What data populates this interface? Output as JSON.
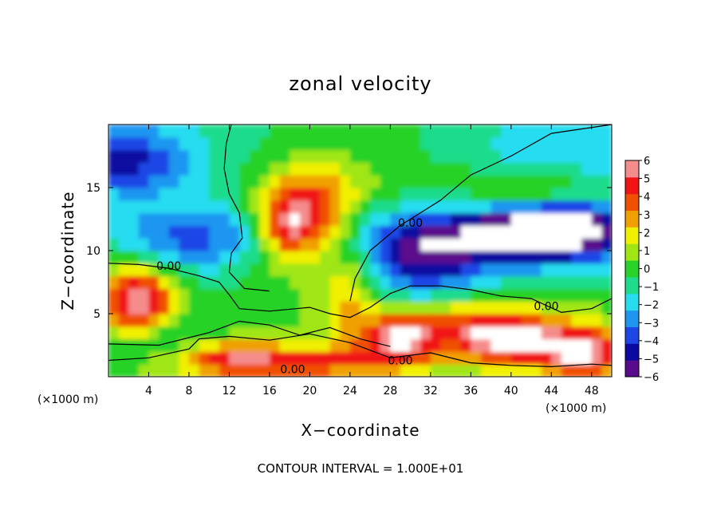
{
  "chart_data": {
    "type": "heatmap",
    "title": "zonal velocity",
    "xlabel": "X−coordinate",
    "ylabel": "Z−coordinate",
    "x_unit": "(×1000 m)",
    "z_unit": "(×1000 m)",
    "xlim": [
      0,
      50
    ],
    "ylim": [
      0,
      20
    ],
    "x_ticks": [
      4,
      8,
      12,
      16,
      20,
      24,
      28,
      32,
      36,
      40,
      44,
      48
    ],
    "y_ticks": [
      5,
      10,
      15
    ],
    "colorbar": {
      "ticks": [
        6,
        5,
        4,
        3,
        2,
        1,
        0,
        -1,
        -2,
        -3,
        -4,
        -5,
        -6
      ],
      "tick_labels": [
        "6",
        "5",
        "4",
        "3",
        "2",
        "1",
        "0",
        "−1",
        "−2",
        "−3",
        "−4",
        "−5",
        "−6"
      ],
      "range": [
        -6,
        6
      ],
      "colors": [
        "#5a0a8c",
        "#0a0aa0",
        "#1e46e6",
        "#1e96f0",
        "#28dcf0",
        "#1edc8c",
        "#28d228",
        "#a0e614",
        "#f0f000",
        "#f0a000",
        "#f05000",
        "#f01414",
        "#f58c8c"
      ]
    },
    "contour_interval_text": "CONTOUR INTERVAL = 1.000E+01",
    "contour_labels": [
      {
        "text": "0.00",
        "x": 6.0,
        "z": 8.8
      },
      {
        "text": "0.00",
        "x": 30.0,
        "z": 12.2
      },
      {
        "text": "0.00",
        "x": 43.5,
        "z": 5.6
      },
      {
        "text": "0.00",
        "x": 29.0,
        "z": 1.3
      },
      {
        "text": "0.00",
        "x": 18.3,
        "z": 0.6
      }
    ],
    "field_blobs": [
      {
        "x": 0,
        "z": 20,
        "rx": 50,
        "rz": 7,
        "v": -2.0
      },
      {
        "x": 27,
        "z": 18,
        "rx": 22,
        "rz": 5,
        "v": 1.5
      },
      {
        "x": 40,
        "z": 16,
        "rx": 12,
        "rz": 5,
        "v": 0.8
      },
      {
        "x": 2,
        "z": 17,
        "rx": 7,
        "rz": 2.5,
        "v": -3.5
      },
      {
        "x": 44,
        "z": 18,
        "rx": 14,
        "rz": 3,
        "v": -3.0
      },
      {
        "x": 8,
        "z": 11,
        "rx": 9,
        "rz": 3,
        "v": -3.5
      },
      {
        "x": 40,
        "z": 11,
        "rx": 16,
        "rz": 3,
        "v": -4.8
      },
      {
        "x": 31,
        "z": 9,
        "rx": 6,
        "rz": 3.5,
        "v": -3.5
      },
      {
        "x": 18,
        "z": 12,
        "rx": 3.5,
        "rz": 3,
        "v": 6.0
      },
      {
        "x": 21,
        "z": 14,
        "rx": 4,
        "rz": 3,
        "v": 2.8
      },
      {
        "x": 24,
        "z": 7,
        "rx": 3,
        "rz": 5,
        "v": 2.5
      },
      {
        "x": 3,
        "z": 6,
        "rx": 3.5,
        "rz": 3,
        "v": 6.0
      },
      {
        "x": 29,
        "z": 3,
        "rx": 3.5,
        "rz": 2,
        "v": 5.0
      },
      {
        "x": 40,
        "z": 3,
        "rx": 5,
        "rz": 2,
        "v": 6.0
      },
      {
        "x": 47,
        "z": 2,
        "rx": 4,
        "rz": 2,
        "v": 6.0
      },
      {
        "x": 34,
        "z": 4,
        "rx": 6,
        "rz": 2,
        "v": 3.0
      },
      {
        "x": 12,
        "z": 1.5,
        "rx": 6,
        "rz": 1.5,
        "v": 4.0
      },
      {
        "x": 21,
        "z": 1.2,
        "rx": 8,
        "rz": 1.2,
        "v": 3.5
      },
      {
        "x": 42,
        "z": 14,
        "rx": 6,
        "rz": 2,
        "v": 2.0
      },
      {
        "x": 5,
        "z": 3,
        "rx": 6,
        "rz": 2,
        "v": -2.0
      },
      {
        "x": 44,
        "z": 12,
        "rx": 7,
        "rz": 2,
        "v": -6.0
      }
    ]
  }
}
